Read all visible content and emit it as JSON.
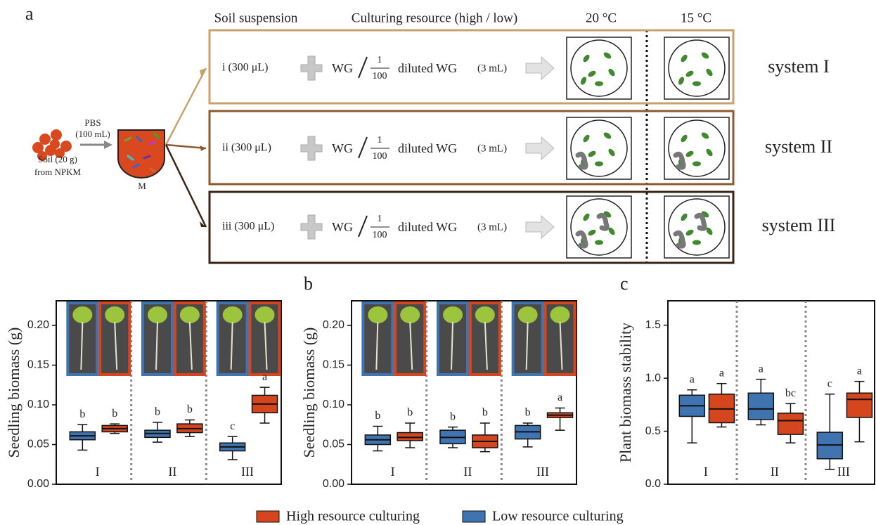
{
  "diagram": {
    "panel": "a",
    "headers": {
      "suspension": "Soil suspension",
      "resource": "Culturing resource (high / low)",
      "temp1": "20 °C",
      "temp2": "15 °C"
    },
    "source": {
      "buffer": "PBS",
      "buffer_volume": "(100 mL)",
      "soil": "Soil (20 g)",
      "origin": "from NPKM",
      "mixture": "M"
    },
    "rows": [
      {
        "sample": "i (300 μL)",
        "medium": "WG",
        "numerator": "1",
        "denominator": "100",
        "diluted": "diluted WG",
        "volume": "(3 mL)",
        "system": "system I",
        "color": "#c9a26b"
      },
      {
        "sample": "ii (300 μL)",
        "medium": "WG",
        "numerator": "1",
        "denominator": "100",
        "diluted": "diluted WG",
        "volume": "(3 mL)",
        "system": "system II",
        "color": "#8b5a2e"
      },
      {
        "sample": "iii (300 μL)",
        "medium": "WG",
        "numerator": "1",
        "denominator": "100",
        "diluted": "diluted WG",
        "volume": "(3 mL)",
        "system": "system III",
        "color": "#3b2414"
      }
    ]
  },
  "chart_data": [
    {
      "type": "box",
      "ylabel": "Seedling biomass (g)",
      "categories": [
        "I",
        "II",
        "III"
      ],
      "category_colors": [
        "#c9a26b",
        "#8b5a2e",
        "#3b2414"
      ],
      "ylim": [
        0,
        0.231
      ],
      "yticks": [
        {
          "value": 0,
          "label": "0.00"
        },
        {
          "value": 0.05,
          "label": "0.05"
        },
        {
          "value": 0.1,
          "label": "0.10"
        },
        {
          "value": 0.15,
          "label": "0.15"
        },
        {
          "value": 0.2,
          "label": "0.20"
        }
      ],
      "series": [
        {
          "name": "Low resource culturing",
          "color": "#3f74b0",
          "min": [
            0.043,
            0.053,
            0.031
          ],
          "q1": [
            0.056,
            0.059,
            0.042
          ],
          "median": [
            0.061,
            0.064,
            0.047
          ],
          "q3": [
            0.066,
            0.068,
            0.052
          ],
          "max": [
            0.075,
            0.078,
            0.06
          ],
          "letters": [
            "b",
            "b",
            "c"
          ]
        },
        {
          "name": "High resource culturing",
          "color": "#d5461f",
          "min": [
            0.064,
            0.06,
            0.077
          ],
          "q1": [
            0.066,
            0.065,
            0.09
          ],
          "median": [
            0.07,
            0.07,
            0.101
          ],
          "q3": [
            0.074,
            0.076,
            0.112
          ],
          "max": [
            0.076,
            0.081,
            0.122
          ],
          "letters": [
            "b",
            "b",
            "a"
          ]
        }
      ]
    },
    {
      "type": "box",
      "panel": "b",
      "ylabel": "Seedling biomass (g)",
      "categories": [
        "I",
        "II",
        "III"
      ],
      "category_colors": [
        "#c9a26b",
        "#8b5a2e",
        "#3b2414"
      ],
      "ylim": [
        0,
        0.231
      ],
      "yticks": [
        {
          "value": 0,
          "label": "0.00"
        },
        {
          "value": 0.05,
          "label": "0.05"
        },
        {
          "value": 0.1,
          "label": "0.10"
        },
        {
          "value": 0.15,
          "label": "0.15"
        },
        {
          "value": 0.2,
          "label": "0.20"
        }
      ],
      "series": [
        {
          "color": "#3f74b0",
          "min": [
            0.042,
            0.046,
            0.047
          ],
          "q1": [
            0.05,
            0.051,
            0.057
          ],
          "median": [
            0.056,
            0.059,
            0.066
          ],
          "q3": [
            0.062,
            0.068,
            0.074
          ],
          "max": [
            0.073,
            0.072,
            0.077
          ],
          "letters": [
            "b",
            "b",
            "b"
          ]
        },
        {
          "color": "#d5461f",
          "min": [
            0.046,
            0.041,
            0.068
          ],
          "q1": [
            0.055,
            0.046,
            0.084
          ],
          "median": [
            0.059,
            0.054,
            0.087
          ],
          "q3": [
            0.065,
            0.062,
            0.09
          ],
          "max": [
            0.077,
            0.077,
            0.096
          ],
          "letters": [
            "b",
            "b",
            "a"
          ]
        }
      ]
    },
    {
      "type": "box",
      "panel": "c",
      "ylabel": "Plant biomass stability",
      "categories": [
        "I",
        "II",
        "III"
      ],
      "category_colors": [
        "#c9a26b",
        "#8b5a2e",
        "#3b2414"
      ],
      "ylim": [
        0,
        1.73
      ],
      "yticks": [
        {
          "value": 0,
          "label": "0.0"
        },
        {
          "value": 0.5,
          "label": "0.5"
        },
        {
          "value": 1,
          "label": "1.0"
        },
        {
          "value": 1.5,
          "label": "1.5"
        }
      ],
      "series": [
        {
          "color": "#3f74b0",
          "min": [
            0.39,
            0.56,
            0.14
          ],
          "q1": [
            0.64,
            0.61,
            0.24
          ],
          "median": [
            0.74,
            0.71,
            0.37
          ],
          "q3": [
            0.84,
            0.86,
            0.49
          ],
          "max": [
            0.89,
            0.99,
            0.85
          ],
          "letters": [
            "a",
            "a",
            "c"
          ]
        },
        {
          "color": "#d5461f",
          "min": [
            0.54,
            0.39,
            0.4
          ],
          "q1": [
            0.58,
            0.47,
            0.63
          ],
          "median": [
            0.71,
            0.6,
            0.8
          ],
          "q3": [
            0.85,
            0.67,
            0.86
          ],
          "max": [
            0.95,
            0.76,
            0.97
          ],
          "letters": [
            "a",
            "bc",
            "a"
          ]
        }
      ]
    }
  ]
}
